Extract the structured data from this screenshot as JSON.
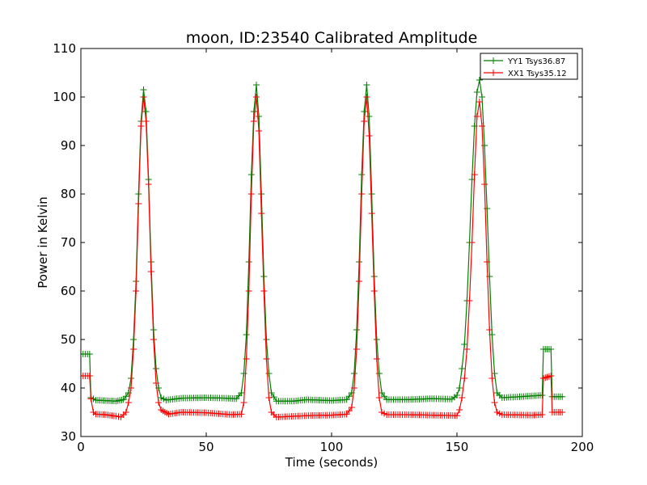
{
  "chart_data": {
    "type": "line",
    "title": "moon, ID:23540 Calibrated Amplitude",
    "xlabel": "Time (seconds)",
    "ylabel": "Power in Kelvin",
    "xlim": [
      0,
      200
    ],
    "ylim": [
      30,
      110
    ],
    "xticks": [
      0,
      50,
      100,
      150,
      200
    ],
    "yticks": [
      30,
      40,
      50,
      60,
      70,
      80,
      90,
      100,
      110
    ],
    "grid": false,
    "legend_position": "top-right",
    "series": [
      {
        "name": "YY1 Tsys36.87",
        "color": "#008000",
        "marker": "+",
        "points": [
          [
            0,
            47
          ],
          [
            3.5,
            47
          ],
          [
            4,
            38
          ],
          [
            6,
            37.5
          ],
          [
            10,
            37.4
          ],
          [
            14,
            37.3
          ],
          [
            17,
            37.6
          ],
          [
            19,
            39
          ],
          [
            20,
            42
          ],
          [
            21,
            50
          ],
          [
            22,
            62
          ],
          [
            23,
            80
          ],
          [
            24,
            95
          ],
          [
            25,
            101.5
          ],
          [
            26,
            97
          ],
          [
            27,
            83
          ],
          [
            28,
            66
          ],
          [
            29,
            52
          ],
          [
            30,
            44
          ],
          [
            31,
            40
          ],
          [
            32,
            38
          ],
          [
            34,
            37.5
          ],
          [
            40,
            37.9
          ],
          [
            50,
            38
          ],
          [
            58,
            37.9
          ],
          [
            62,
            37.8
          ],
          [
            64,
            39
          ],
          [
            65,
            43
          ],
          [
            66,
            51
          ],
          [
            67,
            66
          ],
          [
            68,
            84
          ],
          [
            69,
            97
          ],
          [
            70,
            102.5
          ],
          [
            71,
            96
          ],
          [
            72,
            80
          ],
          [
            73,
            63
          ],
          [
            74,
            50
          ],
          [
            75,
            43
          ],
          [
            76,
            39
          ],
          [
            78,
            37.3
          ],
          [
            85,
            37.3
          ],
          [
            90,
            37.6
          ],
          [
            100,
            37.4
          ],
          [
            106,
            37.6
          ],
          [
            108,
            39
          ],
          [
            109,
            43
          ],
          [
            110,
            52
          ],
          [
            111,
            66
          ],
          [
            112,
            84
          ],
          [
            113,
            97
          ],
          [
            114,
            102.5
          ],
          [
            115,
            96
          ],
          [
            116,
            80
          ],
          [
            117,
            63
          ],
          [
            118,
            50
          ],
          [
            119,
            43
          ],
          [
            120,
            39
          ],
          [
            122,
            37.6
          ],
          [
            130,
            37.6
          ],
          [
            140,
            37.8
          ],
          [
            148,
            37.7
          ],
          [
            150,
            38.5
          ],
          [
            151,
            40
          ],
          [
            152,
            44
          ],
          [
            153,
            49
          ],
          [
            154,
            58
          ],
          [
            155,
            70
          ],
          [
            156,
            83
          ],
          [
            157,
            94
          ],
          [
            158,
            101
          ],
          [
            159,
            103.5
          ],
          [
            160,
            100
          ],
          [
            161,
            90
          ],
          [
            162,
            77
          ],
          [
            163,
            63
          ],
          [
            164,
            51
          ],
          [
            165,
            43
          ],
          [
            166,
            39
          ],
          [
            168,
            38
          ],
          [
            175,
            38.2
          ],
          [
            184,
            38.5
          ],
          [
            184.5,
            48
          ],
          [
            187.5,
            48
          ],
          [
            188,
            38.2
          ],
          [
            192,
            38.2
          ]
        ]
      },
      {
        "name": "XX1 Tsys35.12",
        "color": "#ff0000",
        "marker": "+",
        "points": [
          [
            0,
            42.5
          ],
          [
            3.5,
            42.5
          ],
          [
            4,
            37.8
          ],
          [
            5,
            35
          ],
          [
            6,
            34.6
          ],
          [
            10,
            34.5
          ],
          [
            14,
            34.2
          ],
          [
            16,
            34
          ],
          [
            18,
            35
          ],
          [
            19,
            37
          ],
          [
            20,
            40
          ],
          [
            21,
            48
          ],
          [
            22,
            60
          ],
          [
            23,
            78
          ],
          [
            24,
            94
          ],
          [
            25,
            100
          ],
          [
            26,
            95
          ],
          [
            27,
            82
          ],
          [
            28,
            64
          ],
          [
            29,
            50
          ],
          [
            30,
            41
          ],
          [
            31,
            37
          ],
          [
            32,
            35.5
          ],
          [
            35,
            34.6
          ],
          [
            40,
            35
          ],
          [
            50,
            34.9
          ],
          [
            60,
            34.5
          ],
          [
            64,
            34.6
          ],
          [
            65,
            37
          ],
          [
            66,
            46
          ],
          [
            67,
            60
          ],
          [
            68,
            80
          ],
          [
            69,
            95
          ],
          [
            70,
            100
          ],
          [
            71,
            93
          ],
          [
            72,
            76
          ],
          [
            73,
            60
          ],
          [
            74,
            46
          ],
          [
            75,
            38
          ],
          [
            76,
            35
          ],
          [
            78,
            34
          ],
          [
            90,
            34.3
          ],
          [
            100,
            34.4
          ],
          [
            106,
            34.6
          ],
          [
            108,
            36
          ],
          [
            109,
            40
          ],
          [
            110,
            48
          ],
          [
            111,
            62
          ],
          [
            112,
            80
          ],
          [
            113,
            95
          ],
          [
            114,
            100
          ],
          [
            115,
            92
          ],
          [
            116,
            76
          ],
          [
            117,
            60
          ],
          [
            118,
            46
          ],
          [
            119,
            38
          ],
          [
            120,
            35
          ],
          [
            122,
            34.5
          ],
          [
            130,
            34.5
          ],
          [
            140,
            34.4
          ],
          [
            150,
            34.3
          ],
          [
            151,
            35.5
          ],
          [
            152,
            38
          ],
          [
            153,
            42
          ],
          [
            154,
            48
          ],
          [
            155,
            58
          ],
          [
            156,
            70
          ],
          [
            157,
            84
          ],
          [
            158,
            96
          ],
          [
            159,
            99
          ],
          [
            160,
            94
          ],
          [
            161,
            82
          ],
          [
            162,
            66
          ],
          [
            163,
            52
          ],
          [
            164,
            42
          ],
          [
            165,
            37
          ],
          [
            166,
            35
          ],
          [
            168,
            34.5
          ],
          [
            180,
            34.4
          ],
          [
            184,
            34.5
          ],
          [
            184.5,
            42
          ],
          [
            187.5,
            42.5
          ],
          [
            188,
            35
          ],
          [
            192,
            35
          ]
        ]
      }
    ]
  }
}
